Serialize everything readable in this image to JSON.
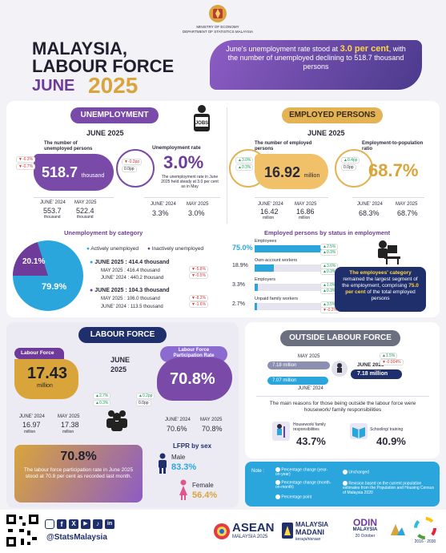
{
  "header": {
    "ministry_line1": "MINISTRY OF ECONOMY",
    "ministry_line2": "DEPARTMENT OF STATISTICS MALAYSIA",
    "title_line1": "MALAYSIA,",
    "title_line2": "LABOUR FORCE",
    "title_month": "JUNE",
    "title_year": "2025",
    "banner_pre": "June's unemployment rate stood at",
    "banner_highlight": "3.0 per cent",
    "banner_post": ", with the number of unemployed declining to",
    "banner_end": "518.7 thousand persons"
  },
  "unemployment": {
    "section_label": "UNEMPLOYMENT",
    "period": "JUNE 2025",
    "count_label": "The number of unemployed persons",
    "count_value": "518.7",
    "count_unit": "thousand",
    "count_chg_yoy": "-6.3%",
    "count_chg_mom": "-0.7%",
    "rate_label": "Unemployment rate",
    "rate_value": "3.0%",
    "rate_chg_yoy": "-0.3pp",
    "rate_chg_mom": "0.0pp",
    "rate_note": "The unemployment rate in June 2025 held steady at 3.0 per cent as in May",
    "cmp_june2024_label": "JUNE' 2024",
    "cmp_may2025_label": "MAY 2025",
    "count_june2024": "553.7",
    "count_may2025": "522.4",
    "count_cmp_unit": "thousand",
    "rate_june2024": "3.3%",
    "rate_may2025": "3.0%",
    "jobs_icon_text": "JOBS"
  },
  "unemployed_by_category": {
    "title": "Unemployment by category",
    "legend_active": "Actively unemployed",
    "legend_inactive": "Inactively unemployed",
    "pct_inactive": "20.1%",
    "pct_active": "79.9%",
    "active_june2025_label": "JUNE 2025",
    "active_june2025_value": "414.4 thousand",
    "active_may2025_label": "MAY 2025",
    "active_may2025_value": "416.4 thousand",
    "active_june2024_label": "JUNE' 2024",
    "active_june2024_value": "440.2 thousand",
    "active_chg1": "-5.8%",
    "active_chg2": "-0.5%",
    "inactive_june2025_label": "JUNE 2025",
    "inactive_june2025_value": "104.3 thousand",
    "inactive_may2025_label": "MAY 2025",
    "inactive_may2025_value": "106.0 thousand",
    "inactive_june2024_label": "JUNE' 2024",
    "inactive_june2024_value": "113.5 thousand",
    "inactive_chg1": "-8.2%",
    "inactive_chg2": "-1.6%"
  },
  "employed": {
    "section_label": "EMPLOYED PERSONS",
    "period": "JUNE 2025",
    "count_label": "The number of employed persons",
    "count_value": "16.92",
    "count_unit": "million",
    "count_chg_yoy": "3.0%",
    "count_chg_mom": "0.3%",
    "epop_label": "Employment-to-population ratio",
    "epop_value": "68.7%",
    "epop_chg_yoy": "0.4pp",
    "epop_chg_mom": "0.0pp",
    "cmp_june2024_label": "JUNE' 2024",
    "cmp_may2025_label": "MAY 2025",
    "count_june2024": "16.42",
    "count_may2025": "16.86",
    "count_cmp_unit": "million",
    "epop_june2024": "68.3%",
    "epop_may2025": "68.7%"
  },
  "employed_by_status": {
    "title": "Employed persons by status in employment",
    "rows": [
      {
        "label": "Employees",
        "pct": "75.0%",
        "value": 75.0,
        "chg1": "2.5%",
        "chg2": "0.3%"
      },
      {
        "label": "Own-account workers",
        "pct": "18.9%",
        "value": 18.9,
        "chg1": "3.6%",
        "chg2": "0.3%"
      },
      {
        "label": "Employers",
        "pct": "3.3%",
        "value": 3.3,
        "chg1": "1.0%",
        "chg2": "0.3%"
      },
      {
        "label": "Unpaid family workers",
        "pct": "2.7%",
        "value": 2.7,
        "chg1": "3.5%",
        "chg2": "-0.2%"
      }
    ],
    "note_bold": "The employees' category",
    "note_mid": "remained the largest segment of the employment, comprising",
    "note_pct": "75.0 per cent",
    "note_end": "of the total employed persons"
  },
  "labour_force": {
    "section_label": "LABOUR FORCE",
    "period_line1": "JUNE",
    "period_line2": "2025",
    "lf_label": "Labour Force",
    "lf_value": "17.43",
    "lf_unit": "million",
    "lf_chg_yoy": "2.7%",
    "lf_chg_mom": "0.3%",
    "lfpr_label": "Labour Force Participation Rate",
    "lfpr_value": "70.8%",
    "lfpr_chg_yoy": "0.2pp",
    "lfpr_chg_mom": "0.0pp",
    "cmp_june2024_label": "JUNE' 2024",
    "cmp_may2025_label": "MAY 2025",
    "lf_june2024": "16.97",
    "lf_may2025": "17.38",
    "lf_cmp_unit": "million",
    "lfpr_june2024": "70.6%",
    "lfpr_may2025": "70.8%",
    "highlight_value": "70.8%",
    "highlight_text": "The labour force participation rate in June 2025 stood at 70.8 per cent as recorded last month.",
    "lfpr_sex_title": "LFPR by sex",
    "male_label": "Male",
    "male_value": "83.3%",
    "female_label": "Female",
    "female_value": "56.4%"
  },
  "outside_lf": {
    "section_label": "OUTSIDE LABOUR FORCE",
    "may2025_label": "MAY 2025",
    "may2025_value": "7.18 million",
    "june2025_label": "JUNE 2025",
    "june2025_value": "7.18 million",
    "june2024_label": "JUNE' 2024",
    "june2024_value": "7.07 million",
    "chg_yoy": "1.5%",
    "chg_mom": "-0.004%",
    "reasons_text": "The main reasons for those being outside the labour force were housework/ family responsibilities",
    "housework_label": "Housework/ family responsibilities",
    "housework_value": "43.7%",
    "school_label": "Schooling/ training",
    "school_value": "40.9%"
  },
  "notes": {
    "title": "Note :",
    "yoy": "Percentage change (year-on-year)",
    "mom": "Percentage change (month-on-month)",
    "pp": "Percentage point",
    "unchanged": "Unchanged",
    "revision": "Revision based on the current population estimates from the Population and Housing Census of Malaysia 2020"
  },
  "footer": {
    "handle": "@StatsMalaysia",
    "asean": "ASEAN",
    "asean_sub": "MALAYSIA 2025",
    "madani_line1": "MALAYSIA",
    "madani_line2": "MADANI",
    "madani_line3": "kesejahteraan",
    "odin_line1": "ODIN",
    "odin_line2": "MALAYSIA",
    "odin_date": "20 October",
    "sdg_years": "2016 - 2030"
  },
  "colors": {
    "purple": "#6f3b9a",
    "gold": "#d9a53b",
    "navy": "#1f2f6b",
    "blue": "#2aa6dd"
  }
}
